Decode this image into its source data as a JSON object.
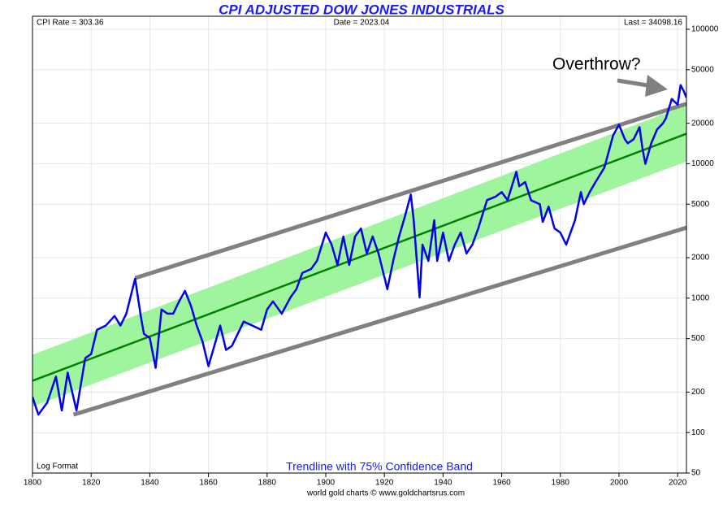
{
  "chart_data": {
    "type": "line",
    "title": "CPI ADJUSTED DOW JONES INDUSTRIALS",
    "annotations": {
      "cpi": "CPI Rate = 303.36",
      "date": "Date = 2023.04",
      "last": "Last = 34098.16",
      "format": "Log Format",
      "band_label": "Trendline with 75% Confidence Band",
      "credit": "world gold charts © www.goldchartsrus.com",
      "callout": "Overthrow?"
    },
    "log_y": true,
    "grid": true,
    "xlim": [
      1800,
      2023
    ],
    "ylim": [
      50,
      125000
    ],
    "xticks": [
      1800,
      1820,
      1840,
      1860,
      1880,
      1900,
      1920,
      1940,
      1960,
      1980,
      2000,
      2020
    ],
    "yticks": [
      50,
      100,
      200,
      500,
      1000,
      2000,
      5000,
      10000,
      20000,
      50000,
      100000
    ],
    "band": {
      "color": "#9ef59e",
      "x": [
        1800,
        2023
      ],
      "upper": [
        379,
        27150
      ],
      "lower": [
        156,
        10400
      ]
    },
    "series": [
      {
        "color": "#808080",
        "width": 5,
        "x": [
          1835,
          2023
        ],
        "values": [
          1410,
          27900
        ]
      },
      {
        "color": "#808080",
        "width": 5,
        "x": [
          1814,
          2023
        ],
        "values": [
          136,
          3340
        ]
      },
      {
        "color": "#008000",
        "width": 2.5,
        "x": [
          1800,
          2023
        ],
        "values": [
          243,
          16700
        ]
      },
      {
        "color": "#0000ee",
        "width": 2.5,
        "x": [
          1800,
          1802,
          1805,
          1808,
          1810,
          1812,
          1815,
          1818,
          1820,
          1822,
          1825,
          1828,
          1830,
          1832,
          1835,
          1837,
          1838,
          1840,
          1842,
          1844,
          1846,
          1848,
          1850,
          1852,
          1854,
          1856,
          1858,
          1860,
          1862,
          1864,
          1866,
          1868,
          1870,
          1872,
          1875,
          1878,
          1880,
          1882,
          1885,
          1888,
          1890,
          1892,
          1895,
          1897,
          1900,
          1902,
          1904,
          1906,
          1908,
          1910,
          1912,
          1914,
          1916,
          1918,
          1920,
          1921,
          1923,
          1925,
          1927,
          1929,
          1930,
          1932,
          1933,
          1935,
          1937,
          1938,
          1940,
          1942,
          1944,
          1946,
          1948,
          1950,
          1952,
          1955,
          1958,
          1960,
          1962,
          1965,
          1966,
          1968,
          1970,
          1973,
          1974,
          1976,
          1978,
          1980,
          1982,
          1985,
          1987,
          1988,
          1990,
          1992,
          1995,
          1998,
          2000,
          2002,
          2003,
          2005,
          2007,
          2008,
          2009,
          2011,
          2013,
          2015,
          2016,
          2018,
          2020,
          2021,
          2022,
          2023
        ],
        "values": [
          184,
          136,
          167,
          261,
          146,
          279,
          146,
          358,
          384,
          582,
          625,
          737,
          625,
          767,
          1396,
          717,
          543,
          505,
          303,
          824,
          767,
          767,
          946,
          1133,
          881,
          625,
          475,
          312,
          441,
          625,
          412,
          441,
          543,
          669,
          625,
          582,
          824,
          946,
          767,
          1015,
          1167,
          1538,
          1648,
          1892,
          3075,
          2500,
          1767,
          2875,
          1767,
          2875,
          3300,
          2150,
          2875,
          2150,
          1435,
          1167,
          1892,
          2875,
          4050,
          5900,
          3800,
          1015,
          2500,
          1892,
          3800,
          1892,
          3075,
          1892,
          2500,
          3075,
          2150,
          2500,
          3300,
          5360,
          5700,
          6150,
          5360,
          8700,
          6800,
          7300,
          5350,
          5000,
          3690,
          4800,
          3300,
          3075,
          2500,
          3800,
          6150,
          5000,
          6150,
          7300,
          9330,
          16250,
          19500,
          15200,
          14200,
          15200,
          18700,
          13000,
          9980,
          14200,
          18000,
          20000,
          21800,
          30300,
          27500,
          38400,
          35000,
          31000
        ]
      }
    ]
  }
}
